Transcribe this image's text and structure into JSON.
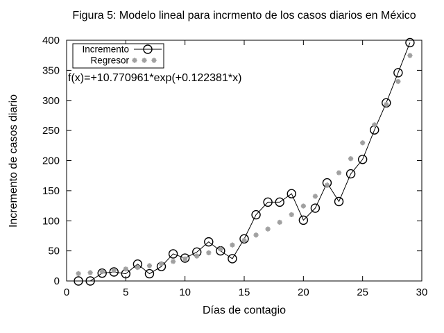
{
  "figure": {
    "background": "#ffffff",
    "axis_color": "#000000"
  },
  "chart_data": {
    "type": "line",
    "title": "Figura 5: Modelo lineal para incrmento de los casos diarios en México",
    "xlabel": "Días de contagio",
    "ylabel": "Incremento de casos diario",
    "annotation": "f(x)=+10.770961*exp(+0.122381*x)",
    "xlim": [
      0,
      30
    ],
    "ylim": [
      0,
      400
    ],
    "x_ticks": [
      0,
      5,
      10,
      15,
      20,
      25,
      30
    ],
    "y_ticks": [
      0,
      50,
      100,
      150,
      200,
      250,
      300,
      350,
      400
    ],
    "grid": false,
    "legend_position": "top-left-inside",
    "x": [
      1,
      2,
      3,
      4,
      5,
      6,
      7,
      8,
      9,
      10,
      11,
      12,
      13,
      14,
      15,
      16,
      17,
      18,
      19,
      20,
      21,
      22,
      23,
      24,
      25,
      26,
      27,
      28,
      29
    ],
    "series": [
      {
        "name": "Incremento",
        "style": "line-with-open-circles",
        "color": "#000000",
        "values": [
          0,
          0,
          13,
          15,
          12,
          28,
          12,
          24,
          45,
          38,
          48,
          65,
          50,
          37,
          70,
          110,
          131,
          131,
          145,
          101,
          121,
          163,
          132,
          178,
          202,
          251,
          296,
          346,
          396
        ]
      },
      {
        "name": "Regresor",
        "style": "asterisk-points",
        "color": "#a0a0a0",
        "values": [
          12.2,
          13.8,
          15.5,
          17.6,
          19.9,
          22.4,
          25.4,
          28.7,
          32.4,
          36.6,
          41.4,
          46.8,
          52.9,
          59.8,
          67.5,
          76.3,
          86.3,
          97.5,
          110.2,
          124.5,
          140.7,
          159.1,
          179.8,
          203.2,
          229.6,
          259.5,
          293.3,
          331.5,
          374.6
        ]
      }
    ]
  }
}
